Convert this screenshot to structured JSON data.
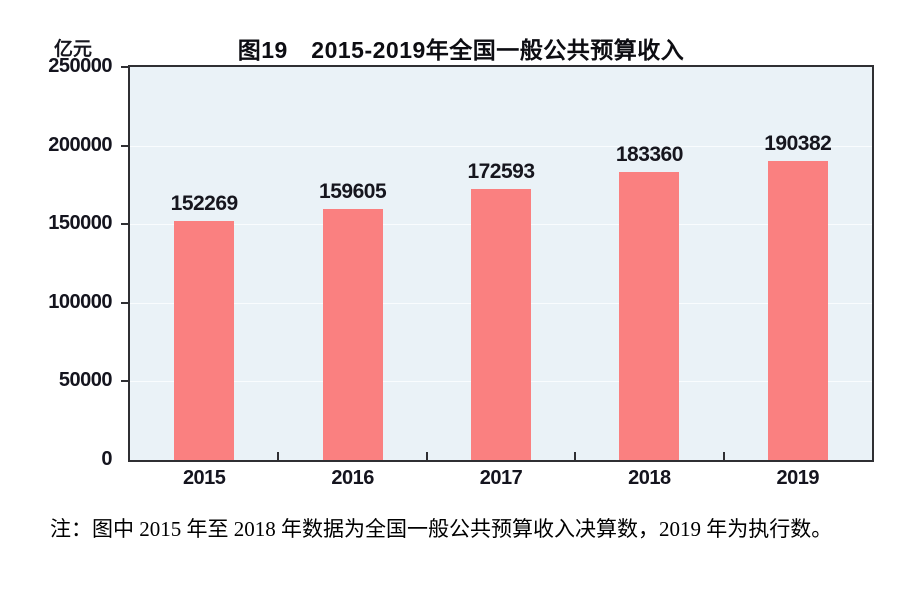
{
  "figure": {
    "unit_label": "亿元",
    "title": "图19　2015-2019年全国一般公共预算收入",
    "note": "注：图中 2015 年至 2018 年数据为全国一般公共预算收入决算数，2019 年为执行数。"
  },
  "chart_data": {
    "type": "bar",
    "title": "图19　2015-2019年全国一般公共预算收入",
    "unit": "亿元",
    "categories": [
      "2015",
      "2016",
      "2017",
      "2018",
      "2019"
    ],
    "values": [
      152269,
      159605,
      172593,
      183360,
      190382
    ],
    "value_labels": [
      "152269",
      "159605",
      "172593",
      "183360",
      "190382"
    ],
    "xlabel": "",
    "ylabel": "亿元",
    "ylim": [
      0,
      250000
    ],
    "ytick_step": 50000,
    "yticks": [
      0,
      50000,
      100000,
      150000,
      200000,
      250000
    ],
    "grid": true,
    "legend_position": "none",
    "colors": {
      "bar": "#FA8080",
      "plot_background": "#EAF2F7",
      "axis": "#2F2F33",
      "gridline": "#F9FCFE",
      "text": "#14141E"
    }
  }
}
